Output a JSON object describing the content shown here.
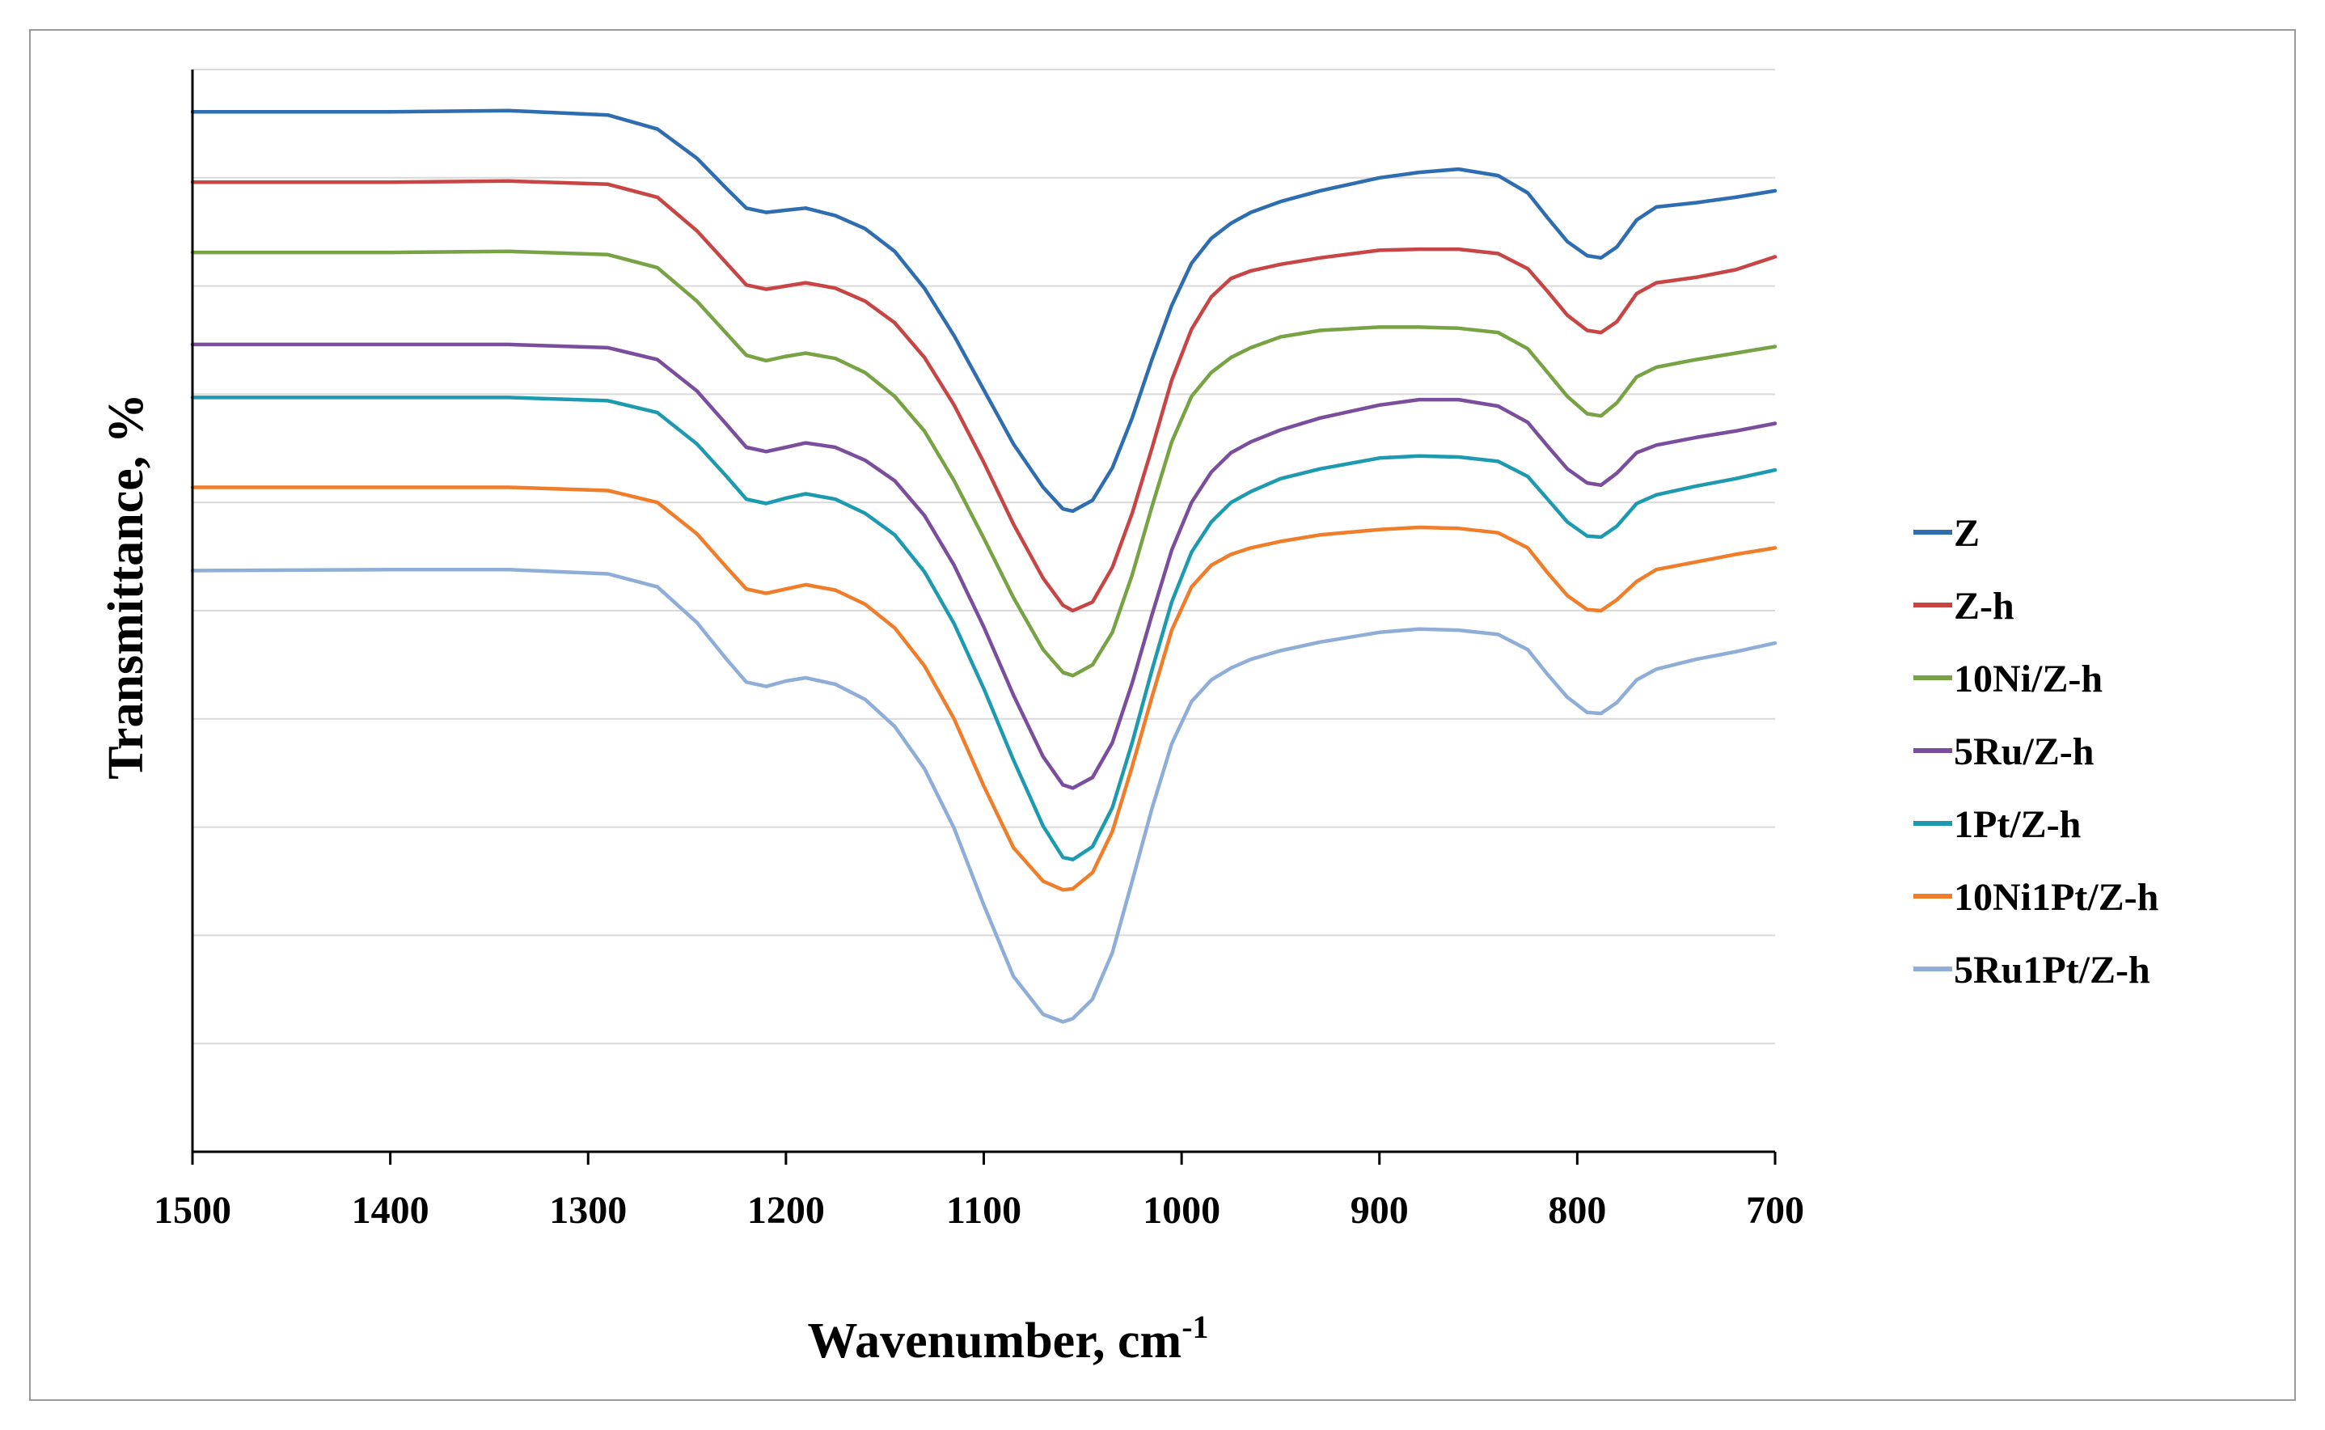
{
  "chart_data": {
    "type": "line",
    "title": "",
    "xlabel": "Wavenumber,  cm",
    "xlabel_sup": "-1",
    "ylabel": "Transmittance,  %",
    "xlim": [
      1500,
      700
    ],
    "x_ticks": [
      1500,
      1400,
      1300,
      1200,
      1100,
      1000,
      900,
      800,
      700
    ],
    "ylim": [
      0,
      100
    ],
    "grid": true,
    "legend_position": "right",
    "series": [
      {
        "name": "Z",
        "color": "#2e6db0",
        "x": [
          1500,
          1400,
          1340,
          1290,
          1265,
          1245,
          1230,
          1220,
          1210,
          1200,
          1190,
          1175,
          1160,
          1145,
          1130,
          1115,
          1100,
          1085,
          1070,
          1060,
          1055,
          1045,
          1035,
          1025,
          1015,
          1005,
          995,
          985,
          975,
          965,
          950,
          930,
          900,
          880,
          860,
          840,
          825,
          815,
          805,
          795,
          788,
          780,
          770,
          760,
          740,
          720,
          700
        ],
        "y": [
          96.1,
          96.1,
          96.2,
          95.8,
          94.5,
          91.8,
          89,
          87.2,
          86.8,
          87,
          87.2,
          86.5,
          85.3,
          83.2,
          79.8,
          75.4,
          70.4,
          65.4,
          61.4,
          59.4,
          59.2,
          60.2,
          63.2,
          67.8,
          73.2,
          78.2,
          82.1,
          84.4,
          85.8,
          86.8,
          87.8,
          88.8,
          90,
          90.5,
          90.8,
          90.2,
          88.6,
          86.3,
          84.1,
          82.8,
          82.6,
          83.6,
          86.1,
          87.3,
          87.7,
          88.2,
          88.8
        ]
      },
      {
        "name": "Z-h",
        "color": "#c84545",
        "x": [
          1500,
          1400,
          1340,
          1290,
          1265,
          1245,
          1230,
          1220,
          1210,
          1200,
          1190,
          1175,
          1160,
          1145,
          1130,
          1115,
          1100,
          1085,
          1070,
          1060,
          1055,
          1045,
          1035,
          1025,
          1015,
          1005,
          995,
          985,
          975,
          965,
          950,
          930,
          900,
          880,
          860,
          840,
          825,
          815,
          805,
          795,
          788,
          780,
          770,
          760,
          740,
          720,
          700
        ],
        "y": [
          89.6,
          89.6,
          89.7,
          89.4,
          88.2,
          85.1,
          82.1,
          80.1,
          79.7,
          80,
          80.3,
          79.8,
          78.6,
          76.6,
          73.4,
          69,
          63.7,
          58,
          53,
          50.5,
          50,
          50.8,
          54,
          59,
          65,
          71.3,
          76,
          79,
          80.7,
          81.4,
          82,
          82.6,
          83.3,
          83.4,
          83.4,
          83,
          81.6,
          79.5,
          77.3,
          75.9,
          75.7,
          76.7,
          79.3,
          80.3,
          80.8,
          81.5,
          82.7
        ]
      },
      {
        "name": "10Ni/Z-h",
        "color": "#77a345",
        "x": [
          1500,
          1400,
          1340,
          1290,
          1265,
          1245,
          1230,
          1220,
          1210,
          1200,
          1190,
          1175,
          1160,
          1145,
          1130,
          1115,
          1100,
          1085,
          1070,
          1060,
          1055,
          1045,
          1035,
          1025,
          1015,
          1005,
          995,
          985,
          975,
          965,
          950,
          930,
          900,
          880,
          860,
          840,
          825,
          815,
          805,
          795,
          788,
          780,
          770,
          760,
          740,
          720,
          700
        ],
        "y": [
          83.1,
          83.1,
          83.2,
          82.9,
          81.7,
          78.6,
          75.6,
          73.6,
          73.1,
          73.5,
          73.8,
          73.3,
          72,
          69.8,
          66.6,
          62,
          56.7,
          51.2,
          46.4,
          44.3,
          44,
          45,
          48,
          53.3,
          59.6,
          65.6,
          69.8,
          72,
          73.4,
          74.3,
          75.3,
          75.9,
          76.2,
          76.2,
          76.1,
          75.7,
          74.2,
          72,
          69.8,
          68.2,
          68,
          69.2,
          71.6,
          72.5,
          73.2,
          73.8,
          74.4
        ]
      },
      {
        "name": "5Ru/Z-h",
        "color": "#7a4e9c",
        "x": [
          1500,
          1400,
          1340,
          1290,
          1265,
          1245,
          1230,
          1220,
          1210,
          1200,
          1190,
          1175,
          1160,
          1145,
          1130,
          1115,
          1100,
          1085,
          1070,
          1060,
          1055,
          1045,
          1035,
          1025,
          1015,
          1005,
          995,
          985,
          975,
          965,
          950,
          930,
          900,
          880,
          860,
          840,
          825,
          815,
          805,
          795,
          788,
          780,
          770,
          760,
          740,
          720,
          700
        ],
        "y": [
          74.6,
          74.6,
          74.6,
          74.3,
          73.2,
          70.3,
          67.2,
          65.1,
          64.7,
          65.1,
          65.5,
          65.1,
          63.9,
          62,
          58.8,
          54.2,
          48.5,
          42.2,
          36.5,
          33.9,
          33.6,
          34.6,
          37.8,
          43.3,
          49.6,
          55.6,
          60,
          62.8,
          64.6,
          65.6,
          66.7,
          67.8,
          69,
          69.5,
          69.5,
          68.9,
          67.4,
          65.2,
          63.1,
          61.8,
          61.6,
          62.7,
          64.6,
          65.3,
          66,
          66.6,
          67.3
        ]
      },
      {
        "name": "1Pt/Z-h",
        "color": "#1e9ab0",
        "x": [
          1500,
          1400,
          1340,
          1290,
          1265,
          1245,
          1230,
          1220,
          1210,
          1200,
          1190,
          1175,
          1160,
          1145,
          1130,
          1115,
          1100,
          1085,
          1070,
          1060,
          1055,
          1045,
          1035,
          1025,
          1015,
          1005,
          995,
          985,
          975,
          965,
          950,
          930,
          900,
          880,
          860,
          840,
          825,
          815,
          805,
          795,
          788,
          780,
          770,
          760,
          740,
          720,
          700
        ],
        "y": [
          69.7,
          69.7,
          69.7,
          69.4,
          68.3,
          65.4,
          62.4,
          60.3,
          59.9,
          60.4,
          60.8,
          60.3,
          59,
          57,
          53.6,
          48.8,
          42.8,
          36.2,
          30.1,
          27.2,
          27,
          28.2,
          31.8,
          37.8,
          44.5,
          50.8,
          55.4,
          58.2,
          60,
          61,
          62.2,
          63.1,
          64.1,
          64.3,
          64.2,
          63.8,
          62.4,
          60.3,
          58.2,
          56.9,
          56.8,
          57.8,
          59.9,
          60.7,
          61.5,
          62.2,
          63
        ]
      },
      {
        "name": "10Ni1Pt/Z-h",
        "color": "#f07d2a",
        "x": [
          1500,
          1400,
          1340,
          1290,
          1265,
          1245,
          1230,
          1220,
          1210,
          1200,
          1190,
          1175,
          1160,
          1145,
          1130,
          1115,
          1100,
          1085,
          1070,
          1060,
          1055,
          1045,
          1035,
          1025,
          1015,
          1005,
          995,
          985,
          975,
          965,
          950,
          930,
          900,
          880,
          860,
          840,
          825,
          815,
          805,
          795,
          788,
          780,
          770,
          760,
          740,
          720,
          700
        ],
        "y": [
          61.4,
          61.4,
          61.4,
          61.1,
          60,
          57.1,
          54,
          52,
          51.6,
          52,
          52.4,
          51.9,
          50.6,
          48.4,
          44.9,
          40,
          33.8,
          28.1,
          25,
          24.2,
          24.3,
          25.8,
          29.6,
          35.6,
          42,
          48.2,
          52.2,
          54.2,
          55.2,
          55.8,
          56.4,
          57,
          57.5,
          57.7,
          57.6,
          57.2,
          55.8,
          53.5,
          51.4,
          50.1,
          50,
          51,
          52.7,
          53.8,
          54.5,
          55.2,
          55.8
        ]
      },
      {
        "name": "5Ru1Pt/Z-h",
        "color": "#8eaed8",
        "x": [
          1500,
          1400,
          1340,
          1290,
          1265,
          1245,
          1230,
          1220,
          1210,
          1200,
          1190,
          1175,
          1160,
          1145,
          1130,
          1115,
          1100,
          1085,
          1070,
          1060,
          1055,
          1045,
          1035,
          1025,
          1015,
          1005,
          995,
          985,
          975,
          965,
          950,
          930,
          900,
          880,
          860,
          840,
          825,
          815,
          805,
          795,
          788,
          780,
          770,
          760,
          740,
          720,
          700
        ],
        "y": [
          53.7,
          53.8,
          53.8,
          53.4,
          52.2,
          48.9,
          45.5,
          43.4,
          43,
          43.5,
          43.8,
          43.2,
          41.8,
          39.3,
          35.4,
          29.9,
          22.8,
          16.2,
          12.7,
          12,
          12.3,
          14.1,
          18.4,
          25,
          31.7,
          37.7,
          41.6,
          43.6,
          44.7,
          45.5,
          46.3,
          47.1,
          48,
          48.3,
          48.2,
          47.8,
          46.4,
          44.1,
          42,
          40.6,
          40.5,
          41.5,
          43.6,
          44.6,
          45.5,
          46.2,
          47
        ]
      }
    ]
  }
}
